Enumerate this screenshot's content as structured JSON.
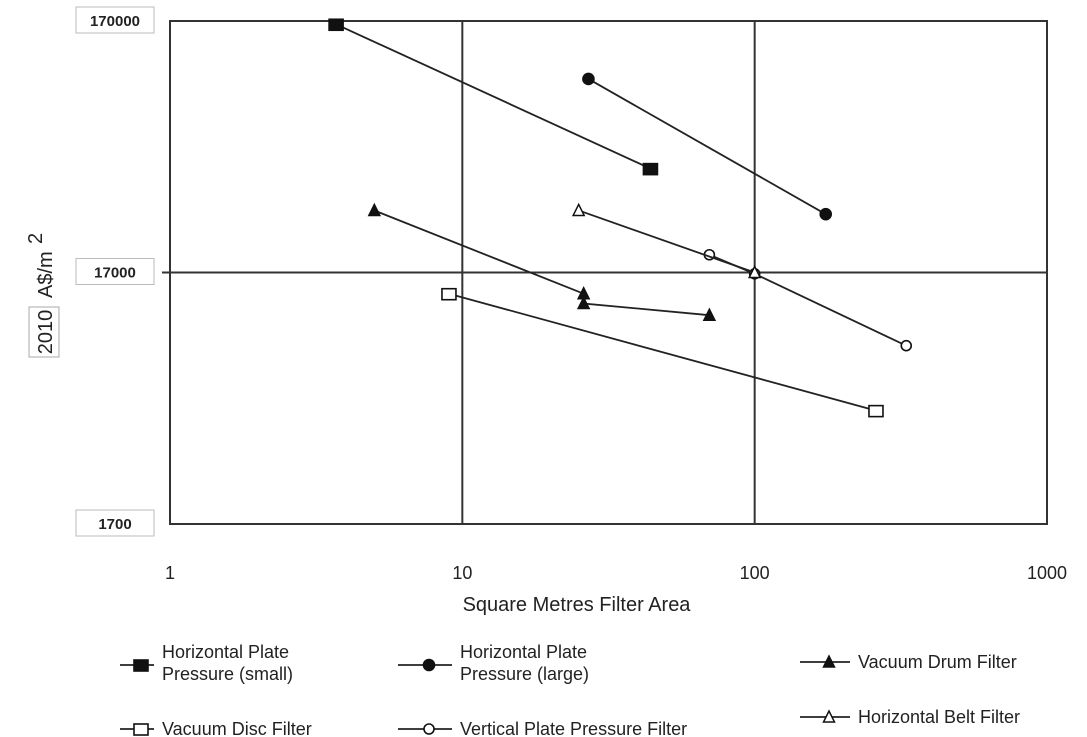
{
  "chart_data": {
    "type": "line",
    "x_scale": "log",
    "y_scale": "log",
    "xlim": [
      1,
      1000
    ],
    "ylim": [
      1700,
      170000
    ],
    "x_ticks": [
      "1",
      "10",
      "100",
      "1000"
    ],
    "y_ticks": [
      "170000",
      "17000",
      "1700"
    ],
    "xlabel": "Square Metres Filter Area",
    "ylabel_year": "2010",
    "ylabel_unit": "A$/m",
    "ylabel_sup": "2",
    "grid": true,
    "legend_position": "bottom",
    "series": [
      {
        "name_lines": [
          "Horizontal Plate",
          "Pressure (small)"
        ],
        "marker": "square-filled",
        "points": [
          [
            3.7,
            165000
          ],
          [
            44,
            44000
          ]
        ]
      },
      {
        "name_lines": [
          "Horizontal Plate",
          "Pressure (large)"
        ],
        "marker": "circle-filled",
        "points": [
          [
            27,
            100000
          ],
          [
            175,
            29000
          ]
        ]
      },
      {
        "name_lines": [
          "Vacuum Drum Filter"
        ],
        "marker": "triangle-filled",
        "points": [
          [
            5,
            30000
          ],
          [
            26,
            14000
          ],
          [
            26,
            12800
          ],
          [
            70,
            11500
          ]
        ]
      },
      {
        "name_lines": [
          "Vacuum Disc Filter"
        ],
        "marker": "square-open",
        "points": [
          [
            9,
            14000
          ],
          [
            260,
            4800
          ]
        ]
      },
      {
        "name_lines": [
          "Vertical Plate Pressure Filter"
        ],
        "marker": "circle-open",
        "points": [
          [
            70,
            20000
          ],
          [
            100,
            16800
          ],
          [
            330,
            8700
          ]
        ]
      },
      {
        "name_lines": [
          "Horizontal Belt Filter"
        ],
        "marker": "triangle-open",
        "points": [
          [
            25,
            30000
          ],
          [
            100,
            17000
          ]
        ]
      }
    ]
  }
}
